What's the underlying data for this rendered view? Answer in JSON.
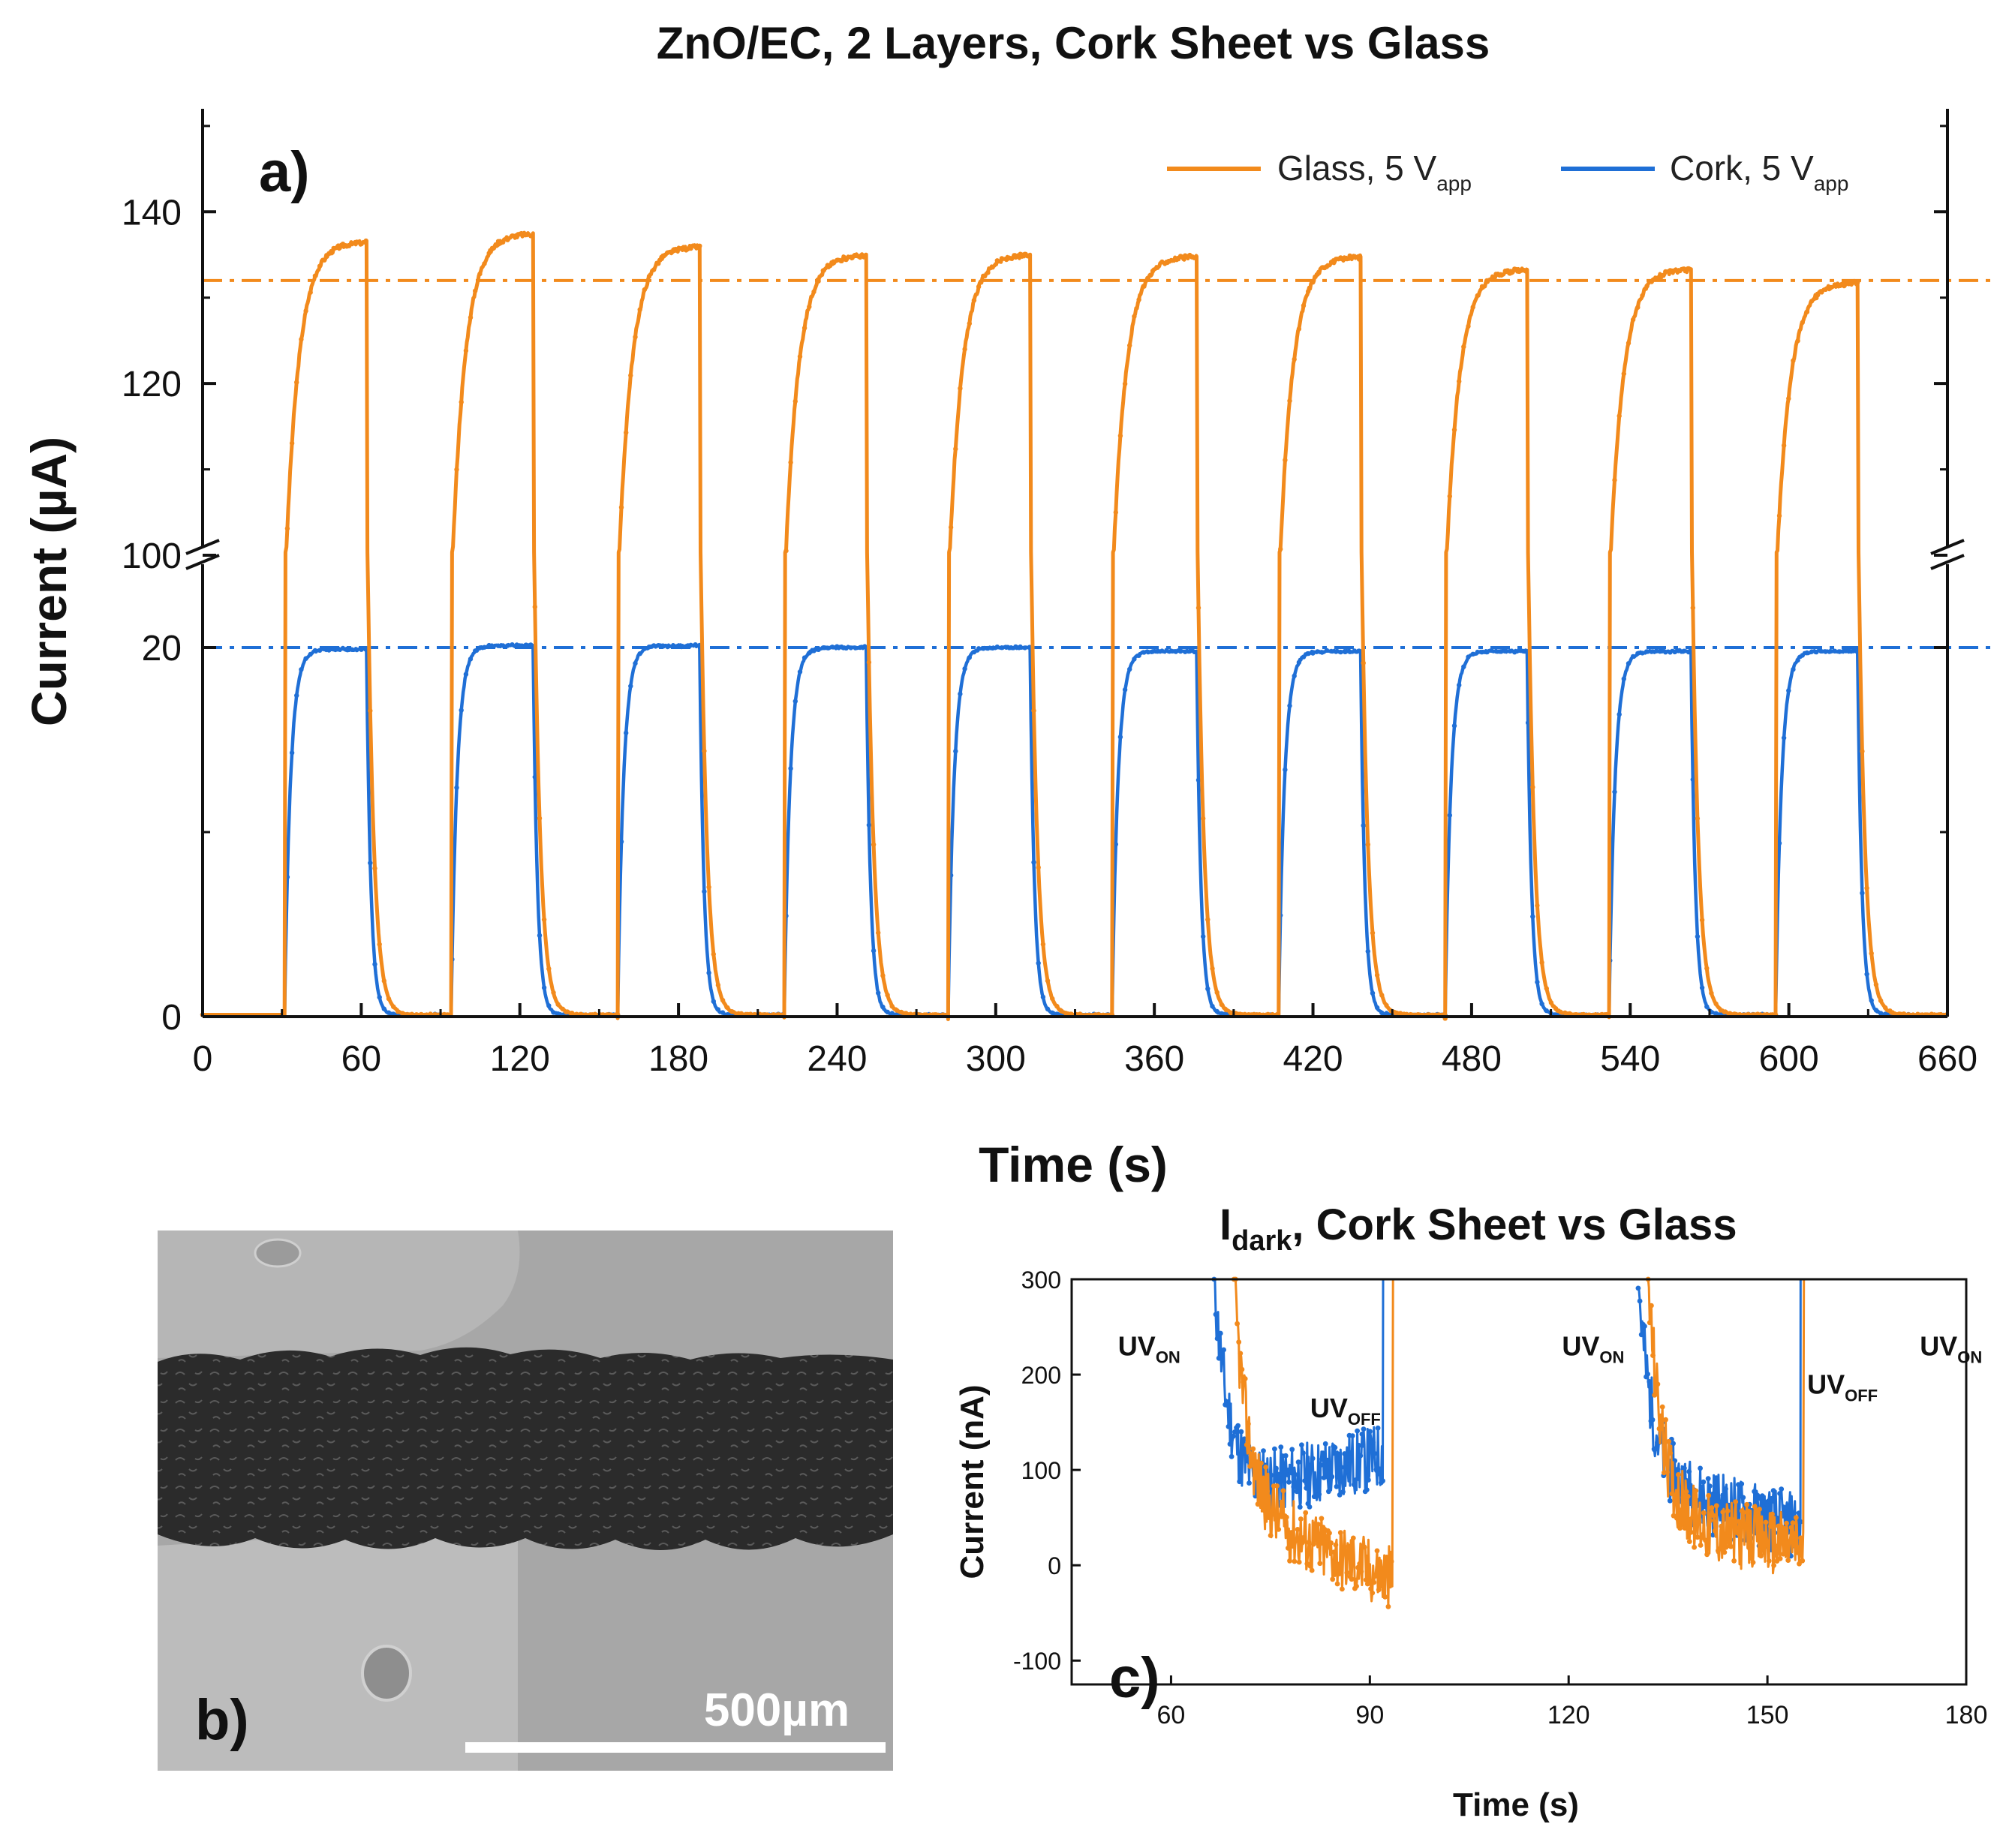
{
  "figure": {
    "title": "ZnO/EC, 2 Layers, Cork Sheet vs Glass"
  },
  "panel_b": {
    "label": "b)",
    "scale_bar_label": "500µm",
    "image_description_color_bg": "#a3a3a3",
    "image_description_color_track": "#2a2a2a"
  },
  "colors": {
    "glass": "#f28a1c",
    "cork": "#1f6fd6",
    "axis": "#111111"
  },
  "chart_data": [
    {
      "id": "a",
      "type": "line",
      "panel_label": "a)",
      "title": "ZnO/EC, 2 Layers, Cork Sheet vs Glass",
      "xlabel": "Time (s)",
      "ylabel": "Current (µA)",
      "xlim": [
        0,
        660
      ],
      "xticks": [
        0,
        60,
        120,
        180,
        240,
        300,
        360,
        420,
        480,
        540,
        600,
        660
      ],
      "broken_y_axis": true,
      "ylim_lower": [
        0,
        25
      ],
      "ylim_upper": [
        100,
        152
      ],
      "yticks_lower": [
        0,
        20
      ],
      "yticks_upper": [
        100,
        120,
        140
      ],
      "reference_lines": [
        {
          "series": "Glass, 5 V",
          "value": 132
        },
        {
          "series": "Cork, 5 V",
          "value": 20
        }
      ],
      "legend": {
        "position": "top-right",
        "entries": [
          {
            "name": "Glass, 5 V",
            "sub": "app"
          },
          {
            "name": "Cork, 5 V",
            "sub": "app"
          }
        ]
      },
      "uv_on_times": [
        31,
        94,
        157,
        220,
        282,
        344,
        407,
        470,
        532,
        595
      ],
      "uv_off_times": [
        62,
        125,
        188,
        251,
        313,
        376,
        438,
        501,
        563,
        626
      ],
      "series": [
        {
          "name": "Glass, 5 V",
          "sub": "app",
          "color": "#f28a1c",
          "plateau_peaks": [
            136.5,
            137.5,
            136.0,
            135.0,
            135.0,
            134.8,
            134.8,
            133.3,
            133.3,
            131.8
          ],
          "dark_current": 0.1
        },
        {
          "name": "Cork, 5 V",
          "sub": "app",
          "color": "#1f6fd6",
          "plateau_peaks": [
            19.9,
            20.1,
            20.1,
            20.0,
            20.0,
            19.8,
            19.8,
            19.8,
            19.8,
            19.8
          ],
          "dark_current": 0.1
        }
      ]
    },
    {
      "id": "c",
      "type": "line",
      "panel_label": "c)",
      "title_main": "I",
      "title_sub": "dark",
      "title_rest": ", Cork Sheet vs Glass",
      "xlabel": "Time (s)",
      "ylabel": "Current (nA)",
      "xlim": [
        45,
        180
      ],
      "ylim": [
        -125,
        300
      ],
      "xticks": [
        60,
        90,
        120,
        150,
        180
      ],
      "yticks": [
        -100,
        0,
        100,
        200,
        300
      ],
      "annotations": [
        {
          "text": "UV",
          "sub": "ON",
          "x": 52,
          "y": 220
        },
        {
          "text": "UV",
          "sub": "OFF",
          "x": 81,
          "y": 155
        },
        {
          "text": "UV",
          "sub": "ON",
          "x": 119,
          "y": 220
        },
        {
          "text": "UV",
          "sub": "OFF",
          "x": 156,
          "y": 180
        },
        {
          "text": "UV",
          "sub": "ON",
          "x": 173,
          "y": 220
        }
      ],
      "series": [
        {
          "name": "Cork",
          "color": "#1f6fd6",
          "segments": [
            {
              "t_start": 66.5,
              "t_end": 92.0,
              "start_value": 300,
              "settle_value": 80,
              "end_value": 115
            },
            {
              "t_start": 130.5,
              "t_end": 155.0,
              "start_value": 300,
              "settle_value": 75,
              "end_value": 40
            }
          ]
        },
        {
          "name": "Glass",
          "color": "#f28a1c",
          "segments": [
            {
              "t_start": 69.5,
              "t_end": 93.5,
              "start_value": 300,
              "settle_value": 40,
              "end_value": -15
            },
            {
              "t_start": 132.0,
              "t_end": 155.5,
              "start_value": 300,
              "settle_value": 40,
              "end_value": 20
            }
          ]
        }
      ]
    }
  ]
}
